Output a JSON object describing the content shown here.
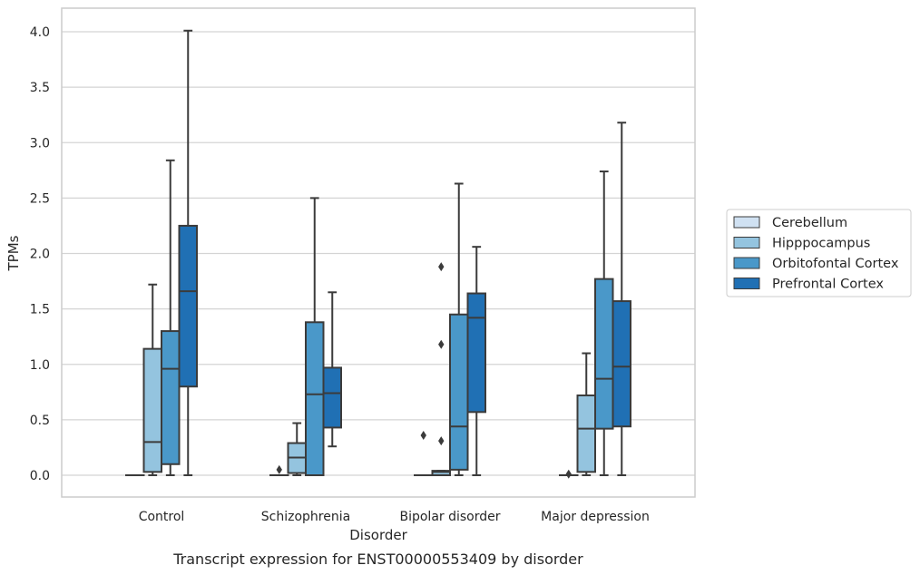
{
  "chart_data": {
    "type": "box",
    "xlabel": "Disorder",
    "ylabel": "TPMs",
    "caption": "Transcript expression for ENST00000553409 by disorder",
    "categories": [
      "Control",
      "Schizophrenia",
      "Bipolar disorder",
      "Major depression"
    ],
    "ylim": [
      -0.2,
      4.22
    ],
    "yticks": [
      0.0,
      0.5,
      1.0,
      1.5,
      2.0,
      2.5,
      3.0,
      3.5,
      4.0
    ],
    "ytick_labels": [
      "0.0",
      "0.5",
      "1.0",
      "1.5",
      "2.0",
      "2.5",
      "3.0",
      "3.5",
      "4.0"
    ],
    "grid": true,
    "legend_position": "right",
    "series": [
      {
        "name": "Cerebellum",
        "color": "#d0e1f2",
        "boxes": [
          {
            "q1": 0.0,
            "median": 0.0,
            "q3": 0.0,
            "whislo": 0.0,
            "whishi": 0.0,
            "fliers": []
          },
          {
            "q1": 0.0,
            "median": 0.0,
            "q3": 0.0,
            "whislo": 0.0,
            "whishi": 0.0,
            "fliers": [
              0.05
            ]
          },
          {
            "q1": 0.0,
            "median": 0.0,
            "q3": 0.0,
            "whislo": 0.0,
            "whishi": 0.0,
            "fliers": [
              0.36
            ]
          },
          {
            "q1": 0.0,
            "median": 0.0,
            "q3": 0.0,
            "whislo": 0.0,
            "whishi": 0.0,
            "fliers": [
              0.01
            ]
          }
        ]
      },
      {
        "name": "Hipppocampus",
        "color": "#94c4df",
        "boxes": [
          {
            "q1": 0.03,
            "median": 0.3,
            "q3": 1.14,
            "whislo": 0.0,
            "whishi": 1.72,
            "fliers": []
          },
          {
            "q1": 0.02,
            "median": 0.16,
            "q3": 0.29,
            "whislo": 0.0,
            "whishi": 0.47,
            "fliers": []
          },
          {
            "q1": 0.0,
            "median": 0.03,
            "q3": 0.04,
            "whislo": 0.0,
            "whishi": 0.04,
            "fliers": [
              0.31,
              1.18,
              1.88
            ]
          },
          {
            "q1": 0.03,
            "median": 0.42,
            "q3": 0.72,
            "whislo": 0.0,
            "whishi": 1.1,
            "fliers": []
          }
        ]
      },
      {
        "name": "Orbitofontal Cortex",
        "color": "#4a98c9",
        "boxes": [
          {
            "q1": 0.1,
            "median": 0.96,
            "q3": 1.3,
            "whislo": 0.0,
            "whishi": 2.84,
            "fliers": []
          },
          {
            "q1": 0.0,
            "median": 0.73,
            "q3": 1.38,
            "whislo": 0.0,
            "whishi": 2.5,
            "fliers": []
          },
          {
            "q1": 0.05,
            "median": 0.44,
            "q3": 1.45,
            "whislo": 0.0,
            "whishi": 2.63,
            "fliers": []
          },
          {
            "q1": 0.42,
            "median": 0.87,
            "q3": 1.77,
            "whislo": 0.0,
            "whishi": 2.74,
            "fliers": []
          }
        ]
      },
      {
        "name": "Prefrontal Cortex",
        "color": "#2070b4",
        "boxes": [
          {
            "q1": 0.8,
            "median": 1.66,
            "q3": 2.25,
            "whislo": 0.0,
            "whishi": 4.01,
            "fliers": []
          },
          {
            "q1": 0.43,
            "median": 0.74,
            "q3": 0.97,
            "whislo": 0.26,
            "whishi": 1.65,
            "fliers": []
          },
          {
            "q1": 0.57,
            "median": 1.42,
            "q3": 1.64,
            "whislo": 0.0,
            "whishi": 2.06,
            "fliers": []
          },
          {
            "q1": 0.44,
            "median": 0.98,
            "q3": 1.57,
            "whislo": 0.0,
            "whishi": 3.18,
            "fliers": []
          }
        ]
      }
    ]
  }
}
